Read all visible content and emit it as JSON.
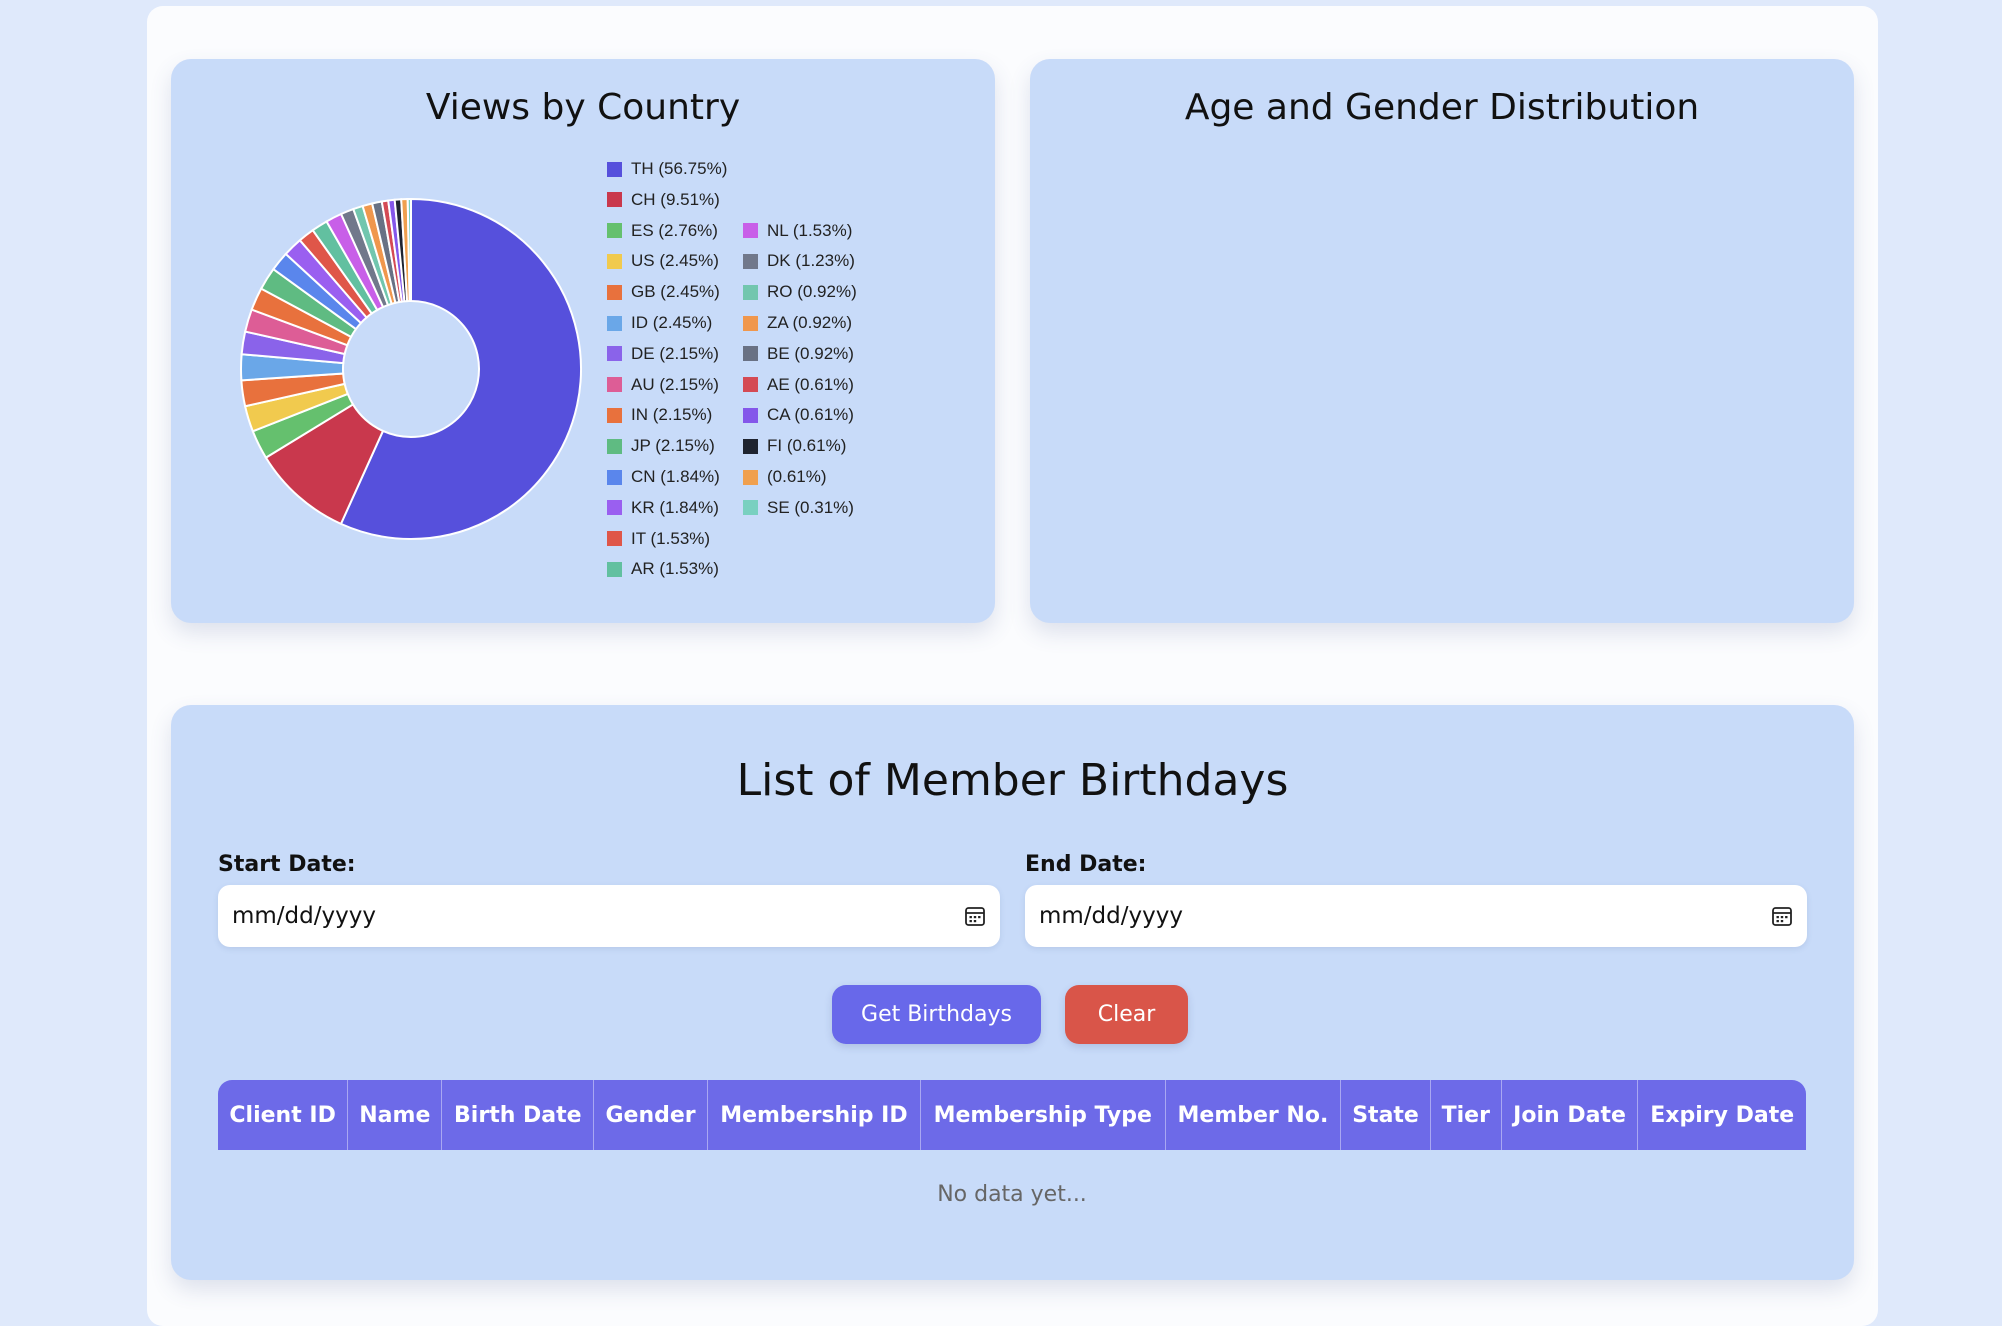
{
  "country_card": {
    "title": "Views by Country",
    "chart_data": {
      "type": "pie",
      "style": "donut",
      "title": "Views by Country",
      "legend_position": "right",
      "slices": [
        {
          "label": "TH (56.75%)",
          "value": 56.75,
          "color": "#5650dc"
        },
        {
          "label": "CH (9.51%)",
          "value": 9.51,
          "color": "#c9384d"
        },
        {
          "label": "ES (2.76%)",
          "value": 2.76,
          "color": "#65c06e"
        },
        {
          "label": "US (2.45%)",
          "value": 2.45,
          "color": "#f1ca4e"
        },
        {
          "label": "GB (2.45%)",
          "value": 2.45,
          "color": "#e8713d"
        },
        {
          "label": "ID (2.45%)",
          "value": 2.45,
          "color": "#6aa7e8"
        },
        {
          "label": "DE (2.15%)",
          "value": 2.15,
          "color": "#8a63ea"
        },
        {
          "label": "AU (2.15%)",
          "value": 2.15,
          "color": "#dd5d96"
        },
        {
          "label": "IN (2.15%)",
          "value": 2.15,
          "color": "#e8713d"
        },
        {
          "label": "JP (2.15%)",
          "value": 2.15,
          "color": "#5fbb82"
        },
        {
          "label": "CN (1.84%)",
          "value": 1.84,
          "color": "#5a86ec"
        },
        {
          "label": "KR (1.84%)",
          "value": 1.84,
          "color": "#9a5ff0"
        },
        {
          "label": "IT (1.53%)",
          "value": 1.53,
          "color": "#df5649"
        },
        {
          "label": "AR (1.53%)",
          "value": 1.53,
          "color": "#62c0a0"
        },
        {
          "label": "NL (1.53%)",
          "value": 1.53,
          "color": "#c85fe8"
        },
        {
          "label": "DK (1.23%)",
          "value": 1.23,
          "color": "#71788b"
        },
        {
          "label": "RO (0.92%)",
          "value": 0.92,
          "color": "#72c6ae"
        },
        {
          "label": "ZA (0.92%)",
          "value": 0.92,
          "color": "#f0974d"
        },
        {
          "label": "BE (0.92%)",
          "value": 0.92,
          "color": "#697184"
        },
        {
          "label": "AE (0.61%)",
          "value": 0.61,
          "color": "#d44a54"
        },
        {
          "label": "CA (0.61%)",
          "value": 0.61,
          "color": "#8457ea"
        },
        {
          "label": "FI (0.61%)",
          "value": 0.61,
          "color": "#1f2430"
        },
        {
          "label": " (0.61%)",
          "value": 0.61,
          "color": "#f0a04f"
        },
        {
          "label": "SE (0.31%)",
          "value": 0.31,
          "color": "#79d0c0"
        }
      ]
    }
  },
  "age_card": {
    "title": "Age and Gender Distribution"
  },
  "birthdays": {
    "title": "List of Member Birthdays",
    "start_label": "Start Date:",
    "end_label": "End Date:",
    "start_value": "mm/dd/yyyy",
    "end_value": "mm/dd/yyyy",
    "get_button": "Get Birthdays",
    "clear_button": "Clear",
    "columns": [
      "Client ID",
      "Name",
      "Birth Date",
      "Gender",
      "Membership ID",
      "Membership Type",
      "Member No.",
      "State",
      "Tier",
      "Join Date",
      "Expiry Date"
    ],
    "empty_text": "No data yet..."
  }
}
